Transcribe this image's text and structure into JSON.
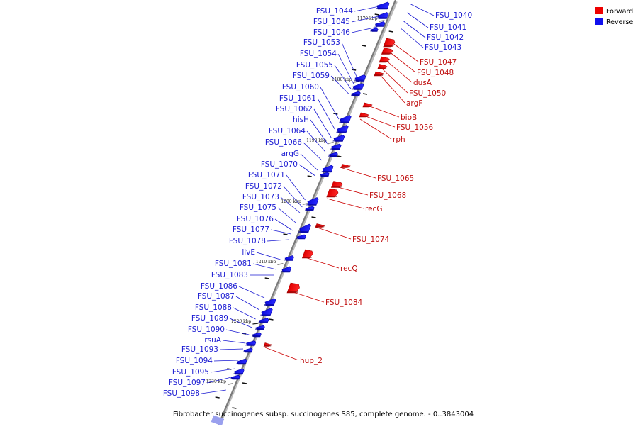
{
  "legend": {
    "forward_label": "Forward",
    "reverse_label": "Reverse",
    "forward_color": "#ee0000",
    "reverse_color": "#1010ee"
  },
  "caption": "Fibrobacter succinogenes subsp. succinogenes S85, complete genome. - 0..3843004",
  "ticks": [
    {
      "kbp": 1170,
      "label": "1170 kbp"
    },
    {
      "kbp": 1180,
      "label": "1180 kbp"
    },
    {
      "kbp": 1190,
      "label": "1190 kbp"
    },
    {
      "kbp": 1200,
      "label": "1200 kbp"
    },
    {
      "kbp": 1210,
      "label": "1210 kbp"
    },
    {
      "kbp": 1220,
      "label": "1220 kbp"
    },
    {
      "kbp": 1230,
      "label": "1230 kbp"
    }
  ],
  "reverse_genes": [
    "FSU_1044",
    "FSU_1045",
    "FSU_1046",
    "FSU_1053",
    "FSU_1054",
    "FSU_1055",
    "FSU_1059",
    "FSU_1060",
    "FSU_1061",
    "FSU_1062",
    "hisH",
    "FSU_1064",
    "FSU_1066",
    "argG",
    "FSU_1070",
    "FSU_1071",
    "FSU_1072",
    "FSU_1073",
    "FSU_1075",
    "FSU_1076",
    "FSU_1077",
    "FSU_1078",
    "ilvE",
    "FSU_1081",
    "FSU_1083",
    "FSU_1086",
    "FSU_1087",
    "FSU_1088",
    "FSU_1089",
    "FSU_1090",
    "rsuA",
    "FSU_1093",
    "FSU_1094",
    "FSU_1095",
    "FSU_1097",
    "FSU_1098"
  ],
  "reverse_right_genes": [
    "FSU_1040",
    "FSU_1041",
    "FSU_1042",
    "FSU_1043"
  ],
  "forward_genes": [
    "FSU_1047",
    "FSU_1048",
    "dusA",
    "FSU_1050",
    "argF",
    "bioB",
    "FSU_1056",
    "rph",
    "FSU_1065",
    "FSU_1068",
    "recG",
    "FSU_1074",
    "recQ",
    "FSU_1084",
    "hup_2"
  ]
}
